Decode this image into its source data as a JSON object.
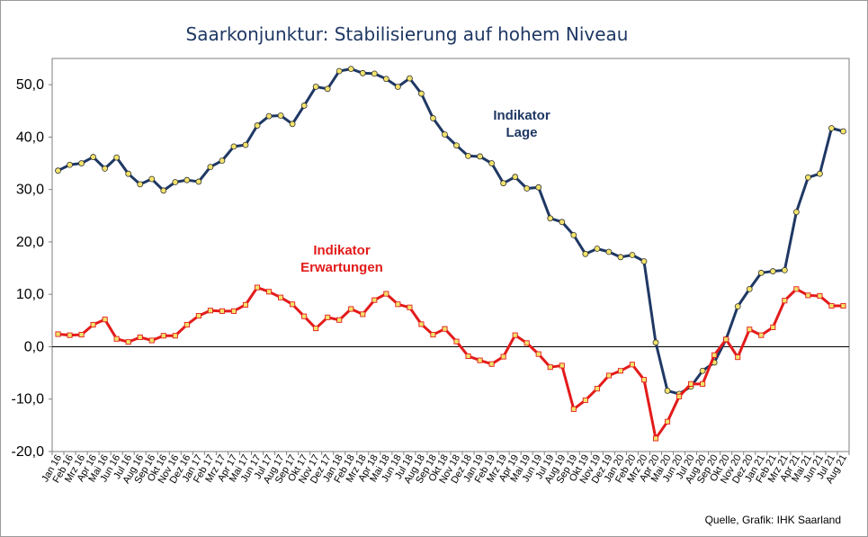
{
  "chart_data": {
    "type": "line",
    "title": "Saarkonjunktur: Stabilisierung auf hohem Niveau",
    "source": "Quelle, Grafik: IHK Saarland",
    "ylim": [
      -20,
      55
    ],
    "yticks": [
      "50,0",
      "40,0",
      "30,0",
      "20,0",
      "10,0",
      "0,0",
      "-10,0",
      "-20,0"
    ],
    "ytick_values": [
      50,
      40,
      30,
      20,
      10,
      0,
      -10,
      -20
    ],
    "grid": false,
    "categories": [
      "Jan 16",
      "Feb 16",
      "Mrz 16",
      "Apr 16",
      "Mai 16",
      "Jun 16",
      "Jul 16",
      "Aug 16",
      "Sep 16",
      "Okt 16",
      "Nov 16",
      "Dez 16",
      "Jan 17",
      "Feb 17",
      "Mrz 17",
      "Apr 17",
      "Mai 17",
      "Jun 17",
      "Jul 17",
      "Aug 17",
      "Sep 17",
      "Okt 17",
      "Nov 17",
      "Dez 17",
      "Jan 18",
      "Feb 18",
      "Mrz 18",
      "Apr 18",
      "Mai 18",
      "Jun 18",
      "Jul 18",
      "Aug 18",
      "Sep 18",
      "Okt 18",
      "Nov 18",
      "Dez 18",
      "Jan 19",
      "Feb 19",
      "Mrz 19",
      "Apr 19",
      "Mai 19",
      "Jun 19",
      "Jul 19",
      "Aug 19",
      "Sep 19",
      "Okt 19",
      "Nov 19",
      "Dez 19",
      "Jan 20",
      "Feb 20",
      "Mrz 20",
      "Apr 20",
      "Mai 20",
      "Jun 20",
      "Jul 20",
      "Aug 20",
      "Sep 20",
      "Okt 20",
      "Nov 20",
      "Dez 20",
      "Jan 21",
      "Feb 21",
      "Mrz 21",
      "Apr 21",
      "Mai 21",
      "Jun 21",
      "Jul 21",
      "Aug 21"
    ],
    "series": [
      {
        "name_lines": [
          "Indikator",
          "Lage"
        ],
        "color": "#1f3864",
        "marker": "circle",
        "marker_fill": "#f2e36b",
        "values": [
          33.6,
          34.7,
          35.0,
          36.2,
          34.0,
          36.1,
          33.0,
          31.0,
          32.0,
          29.8,
          31.4,
          31.8,
          31.5,
          34.3,
          35.5,
          38.2,
          38.5,
          42.2,
          44.0,
          44.1,
          42.5,
          46.0,
          49.6,
          49.2,
          52.6,
          53.0,
          52.2,
          52.1,
          51.1,
          49.6,
          51.2,
          48.3,
          43.6,
          40.5,
          38.4,
          36.4,
          36.3,
          35.0,
          31.2,
          32.4,
          30.2,
          30.4,
          24.5,
          23.8,
          21.3,
          17.7,
          18.7,
          18.1,
          17.1,
          17.5,
          16.3,
          0.8,
          -8.4,
          -9.0,
          -7.6,
          -4.6,
          -3.0,
          1.4,
          7.7,
          11.0,
          14.1,
          14.4,
          14.6,
          25.7,
          32.3,
          33.0,
          41.7,
          41.1
        ]
      },
      {
        "name_lines": [
          "Indikator",
          "Erwartungen"
        ],
        "color": "#e31b1b",
        "marker": "square",
        "marker_fill": "#f2e36b",
        "values": [
          2.4,
          2.2,
          2.3,
          4.2,
          5.2,
          1.5,
          0.9,
          1.8,
          1.2,
          2.1,
          2.1,
          4.2,
          5.9,
          6.9,
          6.8,
          6.8,
          8.0,
          11.3,
          10.5,
          9.4,
          8.1,
          5.8,
          3.5,
          5.6,
          5.1,
          7.2,
          6.2,
          8.9,
          10.1,
          8.1,
          7.5,
          4.3,
          2.3,
          3.4,
          1.0,
          -1.8,
          -2.6,
          -3.3,
          -1.9,
          2.2,
          0.7,
          -1.4,
          -3.9,
          -3.6,
          -11.9,
          -10.2,
          -8.0,
          -5.5,
          -4.6,
          -3.4,
          -6.3,
          -17.5,
          -14.3,
          -9.5,
          -7.1,
          -7.1,
          -1.6,
          1.4,
          -2.0,
          3.3,
          2.2,
          3.7,
          8.8,
          11.0,
          9.8,
          9.7,
          7.8,
          7.8
        ]
      }
    ]
  }
}
